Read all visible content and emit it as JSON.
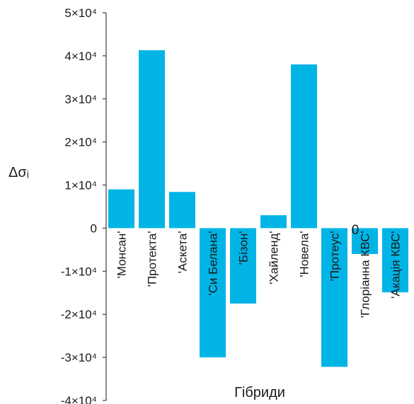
{
  "chart_data": {
    "type": "bar",
    "categories": [
      "'Монсан'",
      "'Протекта'",
      "'Аскета'",
      "'Си Белана'",
      "'Бізон'",
      "'Хайленд'",
      "'Новела'",
      "'Протеус'",
      "'Глоріанна КВС'",
      "'Акація КВС'"
    ],
    "values": [
      9000,
      41300,
      8400,
      -30000,
      -17500,
      3000,
      38000,
      -32200,
      -6000,
      -14900
    ],
    "title": "",
    "xlabel": "Гібриди",
    "ylabel": "Δσᵢ",
    "ylim": [
      -40000,
      50000
    ],
    "ytick_values": [
      50000,
      40000,
      30000,
      20000,
      10000,
      0,
      -10000,
      -20000,
      -30000,
      -40000
    ],
    "ytick_labels": [
      "5×10⁴",
      "4×10⁴",
      "3×10⁴",
      "2×10⁴",
      "1×10⁴",
      "0",
      "-1×10⁴",
      "-2×10⁴",
      "-3×10⁴",
      "-4×10⁴"
    ],
    "annotations": [
      "0"
    ],
    "bar_color": "#00b4e6",
    "grid": false,
    "legend": "none"
  }
}
